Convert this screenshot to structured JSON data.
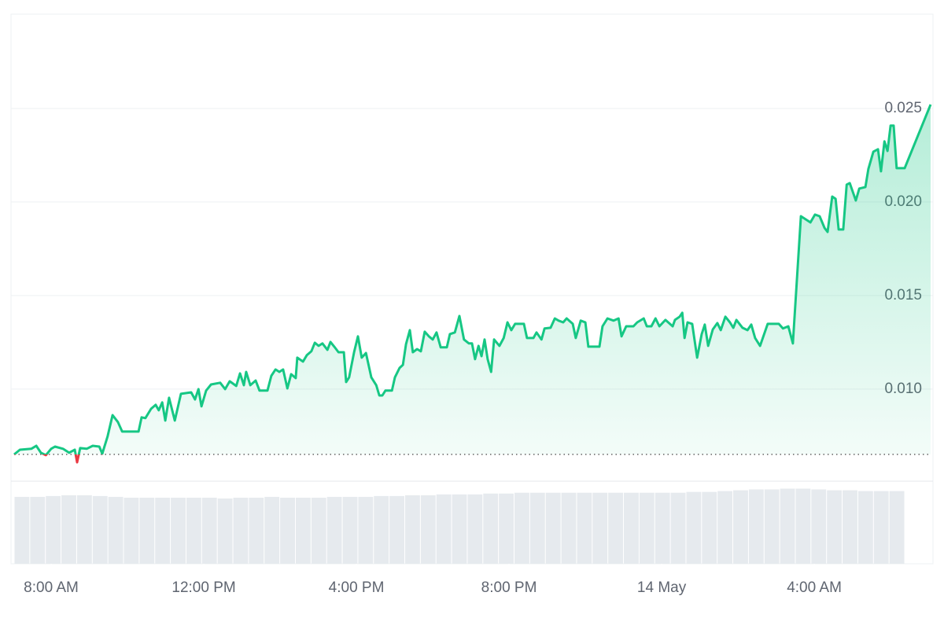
{
  "chart_data": {
    "type": "line",
    "x": [
      7.03,
      7.18,
      7.48,
      7.61,
      7.73,
      7.86,
      8.0,
      8.1,
      8.31,
      8.47,
      8.62,
      8.68,
      8.76,
      8.93,
      9.09,
      9.26,
      9.34,
      9.48,
      9.61,
      9.75,
      9.86,
      10.29,
      10.37,
      10.47,
      10.62,
      10.74,
      10.82,
      10.91,
      10.99,
      11.09,
      11.24,
      11.4,
      11.67,
      11.77,
      11.86,
      11.94,
      12.06,
      12.19,
      12.43,
      12.56,
      12.68,
      12.85,
      12.95,
      13.05,
      13.11,
      13.22,
      13.36,
      13.46,
      13.67,
      13.77,
      13.88,
      13.98,
      14.08,
      14.19,
      14.29,
      14.41,
      14.45,
      14.6,
      14.7,
      14.82,
      14.91,
      15.01,
      15.11,
      15.24,
      15.32,
      15.42,
      15.53,
      15.67,
      15.73,
      15.81,
      15.94,
      16.04,
      16.14,
      16.25,
      16.39,
      16.52,
      16.6,
      16.68,
      16.76,
      16.93,
      17.01,
      17.13,
      17.22,
      17.3,
      17.4,
      17.48,
      17.59,
      17.69,
      17.79,
      17.9,
      18.0,
      18.1,
      18.21,
      18.37,
      18.45,
      18.58,
      18.7,
      18.82,
      18.95,
      19.03,
      19.11,
      19.2,
      19.28,
      19.36,
      19.44,
      19.53,
      19.61,
      19.75,
      19.86,
      19.96,
      20.06,
      20.16,
      20.39,
      20.47,
      20.64,
      20.72,
      20.85,
      20.93,
      21.09,
      21.2,
      21.3,
      21.42,
      21.51,
      21.67,
      21.75,
      21.88,
      22.0,
      22.08,
      22.37,
      22.45,
      22.58,
      22.74,
      22.87,
      22.95,
      23.07,
      23.26,
      23.36,
      23.53,
      23.61,
      23.73,
      23.84,
      23.94,
      24.1,
      24.29,
      24.35,
      24.47,
      24.54,
      24.6,
      24.68,
      24.8,
      24.93,
      25.05,
      25.13,
      25.22,
      25.34,
      25.46,
      25.55,
      25.67,
      25.79,
      25.88,
      25.96,
      26.12,
      26.25,
      26.35,
      26.45,
      26.58,
      26.78,
      27.07,
      27.18,
      27.32,
      27.44,
      27.65,
      27.9,
      28.02,
      28.14,
      28.27,
      28.35,
      28.47,
      28.56,
      28.64,
      28.76,
      28.85,
      28.93,
      29.09,
      29.18,
      29.34,
      29.42,
      29.55,
      29.67,
      29.75,
      29.84,
      29.92,
      30.0,
      30.08,
      30.16,
      30.37,
      31.05
    ],
    "values": [
      0.00651,
      0.00676,
      0.00681,
      0.00697,
      0.0066,
      0.00647,
      0.00681,
      0.00693,
      0.00681,
      0.0066,
      0.00676,
      0.00609,
      0.00685,
      0.00681,
      0.00697,
      0.00693,
      0.00655,
      0.00748,
      0.00861,
      0.00824,
      0.00773,
      0.00773,
      0.00849,
      0.00845,
      0.00895,
      0.00916,
      0.00887,
      0.00929,
      0.00832,
      0.00954,
      0.00832,
      0.00975,
      0.00983,
      0.00945,
      0.01,
      0.00908,
      0.00992,
      0.01025,
      0.01034,
      0.01,
      0.01042,
      0.01017,
      0.01084,
      0.01021,
      0.01092,
      0.01021,
      0.01046,
      0.00992,
      0.00992,
      0.01071,
      0.01105,
      0.01092,
      0.01105,
      0.01004,
      0.0108,
      0.01059,
      0.01168,
      0.01147,
      0.01181,
      0.01202,
      0.01248,
      0.01231,
      0.01244,
      0.0121,
      0.01252,
      0.01227,
      0.01197,
      0.01197,
      0.01038,
      0.01063,
      0.01197,
      0.01282,
      0.01168,
      0.01193,
      0.01063,
      0.01021,
      0.00966,
      0.00966,
      0.00992,
      0.00992,
      0.01063,
      0.01113,
      0.0113,
      0.0124,
      0.01315,
      0.01197,
      0.01214,
      0.01202,
      0.01307,
      0.01282,
      0.01265,
      0.01303,
      0.01223,
      0.01223,
      0.01294,
      0.01303,
      0.01391,
      0.01265,
      0.01244,
      0.01244,
      0.0116,
      0.01231,
      0.01176,
      0.01265,
      0.0116,
      0.01092,
      0.01265,
      0.01231,
      0.01273,
      0.01357,
      0.01315,
      0.01349,
      0.01349,
      0.01273,
      0.01273,
      0.01303,
      0.01265,
      0.01324,
      0.01328,
      0.01378,
      0.01366,
      0.01357,
      0.01378,
      0.01349,
      0.01273,
      0.01366,
      0.01357,
      0.01227,
      0.01227,
      0.01336,
      0.01378,
      0.01366,
      0.01378,
      0.01282,
      0.01336,
      0.01336,
      0.01357,
      0.01378,
      0.01336,
      0.01336,
      0.01378,
      0.01336,
      0.0137,
      0.01336,
      0.0137,
      0.01387,
      0.01408,
      0.01273,
      0.01357,
      0.01349,
      0.01168,
      0.01294,
      0.01345,
      0.01231,
      0.01319,
      0.01353,
      0.01315,
      0.01387,
      0.01357,
      0.01328,
      0.0137,
      0.01328,
      0.01315,
      0.01345,
      0.01273,
      0.01231,
      0.01349,
      0.01349,
      0.01324,
      0.01336,
      0.01244,
      0.01924,
      0.01891,
      0.01933,
      0.01924,
      0.01861,
      0.0184,
      0.02029,
      0.02017,
      0.01853,
      0.01853,
      0.02093,
      0.02101,
      0.02008,
      0.02072,
      0.0208,
      0.02177,
      0.02269,
      0.02282,
      0.02164,
      0.02324,
      0.02273,
      0.02408,
      0.02408,
      0.02181,
      0.02181,
      0.02521
    ],
    "color": "#16c784",
    "color_below": "#ea3943",
    "baseline": 0.00651,
    "xlim": [
      7.03,
      31.05
    ],
    "xticks": [
      {
        "value": 8,
        "label": "8:00 AM"
      },
      {
        "value": 12,
        "label": "12:00 PM"
      },
      {
        "value": 16,
        "label": "4:00 PM"
      },
      {
        "value": 20,
        "label": "8:00 PM"
      },
      {
        "value": 24,
        "label": "14 May"
      },
      {
        "value": 28,
        "label": "4:00 AM"
      }
    ],
    "ylim": [
      0.00508,
      0.03004
    ],
    "yticks": [
      {
        "value": 0.01,
        "label": "0.010"
      },
      0.015,
      {
        "value": 0.02,
        "label": "0.020"
      },
      0.025
    ],
    "grid": true,
    "volume": {
      "color": "#e6eaee",
      "vlim": [
        0,
        100
      ],
      "values": [
        81,
        81,
        82,
        83,
        83,
        82,
        81,
        80,
        80,
        80,
        80,
        80,
        80,
        79,
        80,
        80,
        81,
        80,
        80,
        80,
        81,
        81,
        81,
        82,
        82,
        83,
        83,
        84,
        84,
        84,
        85,
        85,
        86,
        86,
        86,
        86,
        86,
        86,
        86,
        86,
        86,
        86,
        86,
        87,
        87,
        88,
        89,
        90,
        90,
        91,
        91,
        90,
        89,
        89,
        88,
        88,
        88
      ]
    }
  }
}
